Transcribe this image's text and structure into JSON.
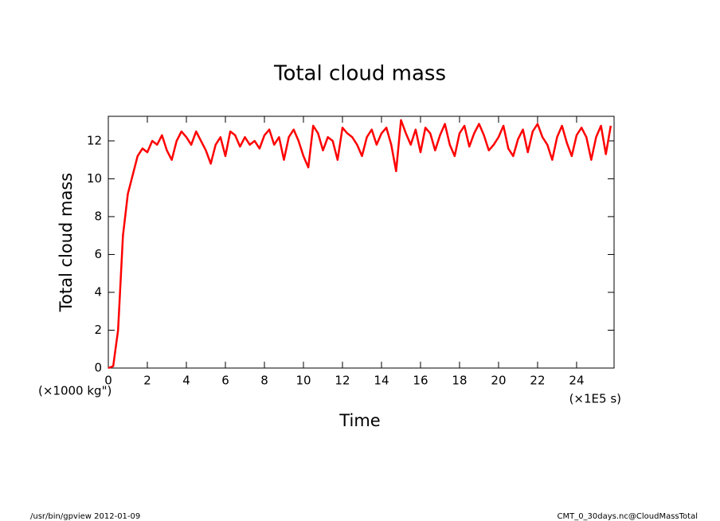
{
  "chart_data": {
    "type": "line",
    "title": "Total cloud mass",
    "xlabel": "Time",
    "ylabel": "Total cloud mass",
    "ylabel_unit": "(×1000 kg\")",
    "xlabel_unit": "(×1E5 s)",
    "footer_left": "/usr/bin/gpview  2012-01-09",
    "footer_right": "CMT_0_30days.nc@CloudMassTotal",
    "xlim": [
      0,
      25.92
    ],
    "ylim": [
      0,
      13.3
    ],
    "xticks": [
      0,
      2,
      4,
      6,
      8,
      10,
      12,
      14,
      16,
      18,
      20,
      22,
      24
    ],
    "yticks": [
      0,
      2,
      4,
      6,
      8,
      10,
      12
    ],
    "x": [
      0,
      0.25,
      0.5,
      0.75,
      1,
      1.25,
      1.5,
      1.75,
      2,
      2.25,
      2.5,
      2.75,
      3,
      3.25,
      3.5,
      3.75,
      4,
      4.25,
      4.5,
      4.75,
      5,
      5.25,
      5.5,
      5.75,
      6,
      6.25,
      6.5,
      6.75,
      7,
      7.25,
      7.5,
      7.75,
      8,
      8.25,
      8.5,
      8.75,
      9,
      9.25,
      9.5,
      9.75,
      10,
      10.25,
      10.5,
      10.75,
      11,
      11.25,
      11.5,
      11.75,
      12,
      12.25,
      12.5,
      12.75,
      13,
      13.25,
      13.5,
      13.75,
      14,
      14.25,
      14.5,
      14.75,
      15,
      15.25,
      15.5,
      15.75,
      16,
      16.25,
      16.5,
      16.75,
      17,
      17.25,
      17.5,
      17.75,
      18,
      18.25,
      18.5,
      18.75,
      19,
      19.25,
      19.5,
      19.75,
      20,
      20.25,
      20.5,
      20.75,
      21,
      21.25,
      21.5,
      21.75,
      22,
      22.25,
      22.5,
      22.75,
      23,
      23.25,
      23.5,
      23.75,
      24,
      24.25,
      24.5,
      24.75,
      25,
      25.25,
      25.5,
      25.75
    ],
    "series": [
      {
        "name": "Total cloud mass",
        "color": "#ff0000",
        "values": [
          0,
          0.1,
          2,
          7,
          9.2,
          10.2,
          11.2,
          11.6,
          11.4,
          12.0,
          11.8,
          12.3,
          11.5,
          11.0,
          12.0,
          12.5,
          12.2,
          11.8,
          12.5,
          12.0,
          11.5,
          10.8,
          11.8,
          12.2,
          11.2,
          12.5,
          12.3,
          11.7,
          12.2,
          11.8,
          12.0,
          11.6,
          12.3,
          12.6,
          11.8,
          12.2,
          11.0,
          12.2,
          12.6,
          12.0,
          11.2,
          10.6,
          12.8,
          12.4,
          11.5,
          12.2,
          12.0,
          11.0,
          12.7,
          12.4,
          12.2,
          11.8,
          11.2,
          12.2,
          12.6,
          11.8,
          12.4,
          12.7,
          11.8,
          10.4,
          13.1,
          12.4,
          11.8,
          12.6,
          11.4,
          12.7,
          12.4,
          11.5,
          12.3,
          12.9,
          11.8,
          11.2,
          12.4,
          12.8,
          11.7,
          12.4,
          12.9,
          12.3,
          11.5,
          11.8,
          12.2,
          12.8,
          11.6,
          11.2,
          12.1,
          12.6,
          11.4,
          12.5,
          12.9,
          12.2,
          11.8,
          11.0,
          12.2,
          12.8,
          11.9,
          11.2,
          12.3,
          12.7,
          12.2,
          11.0,
          12.2,
          12.8,
          11.3,
          12.8
        ]
      }
    ]
  }
}
